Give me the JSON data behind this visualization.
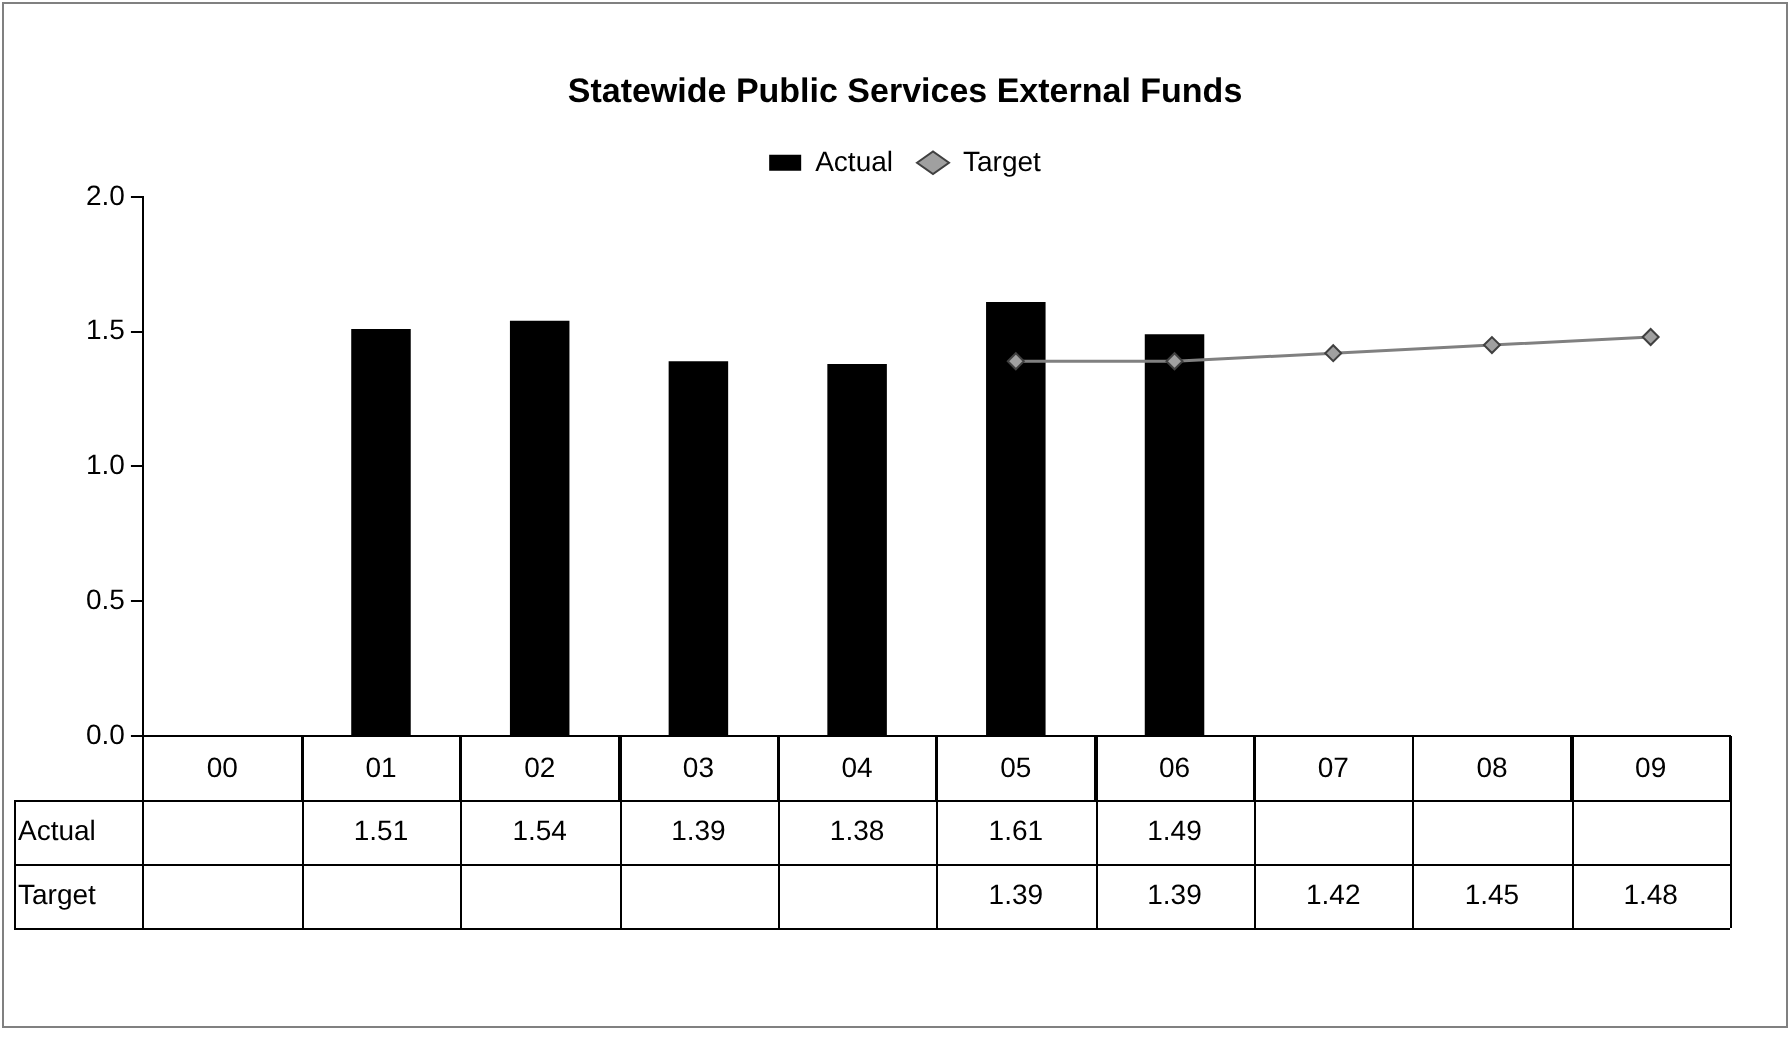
{
  "chart_data": {
    "type": "bar",
    "title": "Statewide Public Services External Funds",
    "categories": [
      "00",
      "01",
      "02",
      "03",
      "04",
      "05",
      "06",
      "07",
      "08",
      "09"
    ],
    "series": [
      {
        "name": "Actual",
        "color": "#000000",
        "values": [
          null,
          1.51,
          1.54,
          1.39,
          1.38,
          1.61,
          1.49,
          null,
          null,
          null
        ]
      },
      {
        "name": "Target",
        "type": "line",
        "color": "#808080",
        "marker": "diamond",
        "values": [
          null,
          null,
          null,
          null,
          null,
          1.39,
          1.39,
          1.42,
          1.45,
          1.48
        ]
      }
    ],
    "ylim": [
      0,
      2
    ],
    "yticks": [
      {
        "value": 0,
        "label": "0.0"
      },
      {
        "value": 0.5,
        "label": "0.5"
      },
      {
        "value": 1,
        "label": "1.0"
      },
      {
        "value": 1.5,
        "label": "1.5"
      },
      {
        "value": 2,
        "label": "2.0"
      }
    ],
    "grid": false,
    "legend": "top",
    "data_labels": true
  }
}
